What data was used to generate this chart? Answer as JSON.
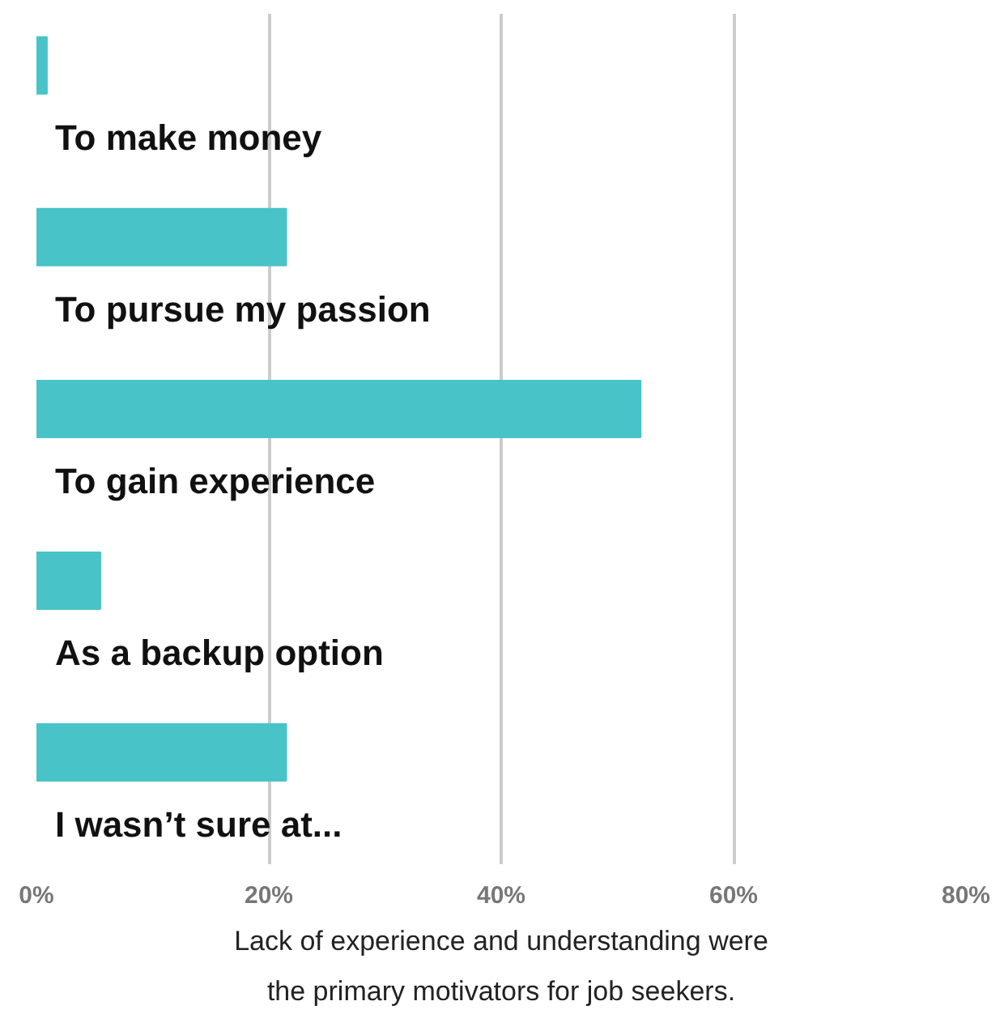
{
  "chart_data": {
    "type": "bar",
    "orientation": "horizontal",
    "categories": [
      "To make money",
      "To pursue my passion",
      "To gain experience",
      "As a backup option",
      "I wasn’t sure at..."
    ],
    "values": [
      0.9,
      21.5,
      52,
      5.5,
      21.5
    ],
    "color": "#48c3c8",
    "xlim": [
      0,
      80
    ],
    "xticks": [
      {
        "value": 0,
        "label": "0%"
      },
      {
        "value": 20,
        "label": "20%"
      },
      {
        "value": 40,
        "label": "40%"
      },
      {
        "value": 60,
        "label": "60%"
      },
      {
        "value": 80,
        "label": "80%"
      }
    ],
    "grid": "x",
    "annotations": [
      "Lack of experience and understanding were",
      "the primary motivators for job seekers."
    ]
  }
}
